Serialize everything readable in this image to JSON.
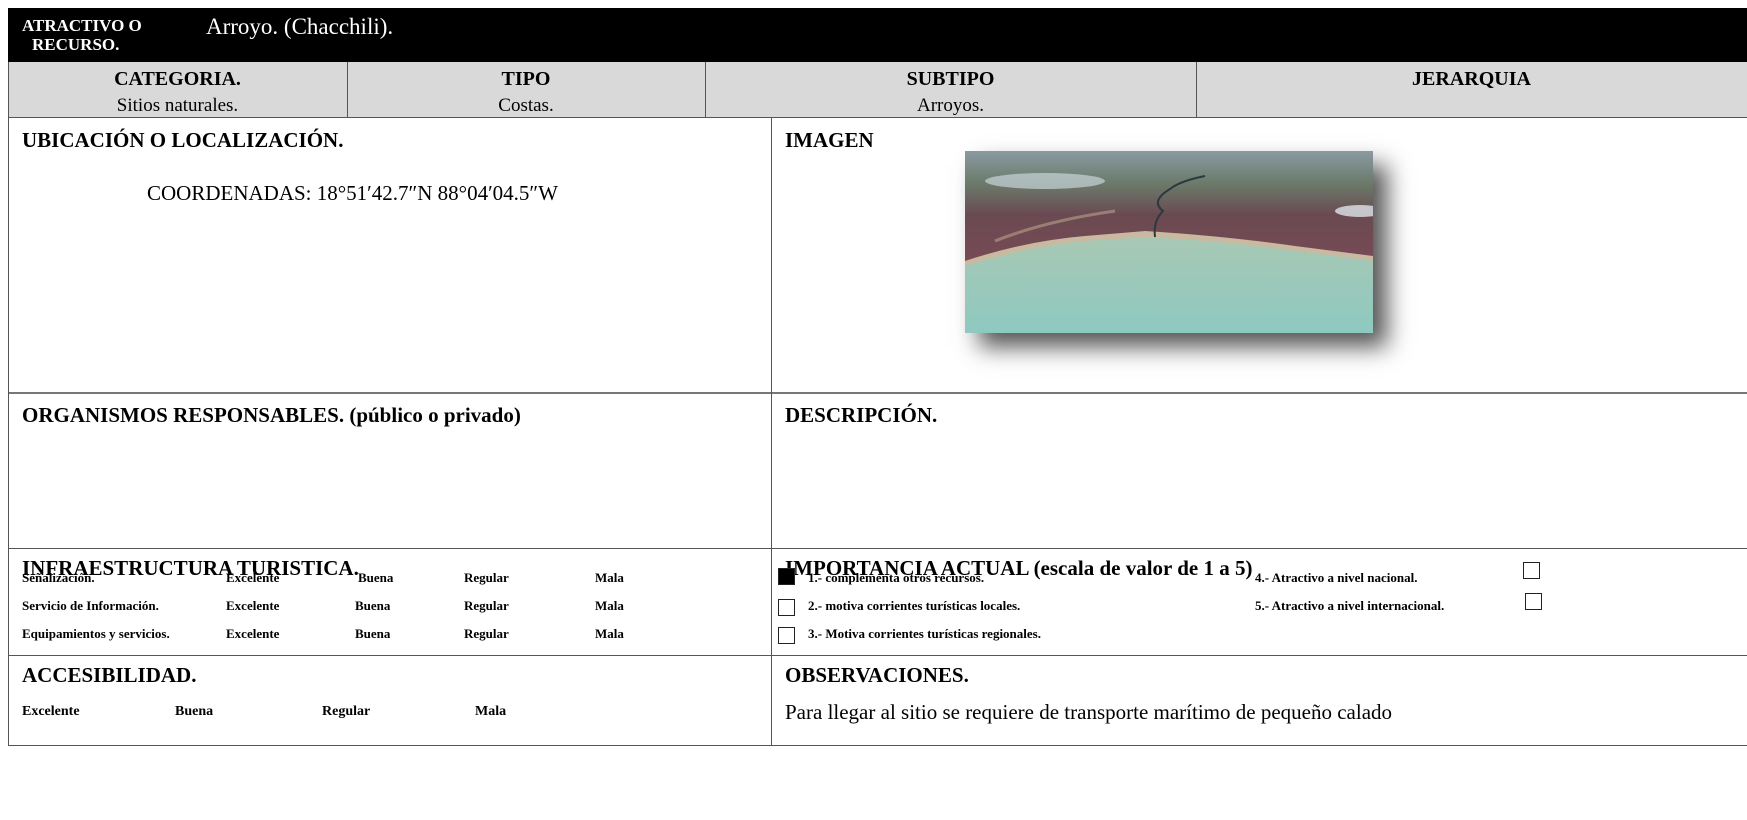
{
  "header": {
    "label_line1": "ATRACTIVO O",
    "label_line2": "RECURSO.",
    "title": "Arroyo. (Chacchili)."
  },
  "classification": {
    "columns": [
      {
        "heading": "CATEGORIA.",
        "value": "Sitios naturales."
      },
      {
        "heading": "TIPO",
        "value": "Costas."
      },
      {
        "heading": "SUBTIPO",
        "value": "Arroyos."
      },
      {
        "heading": "JERARQUIA"
      }
    ]
  },
  "location": {
    "heading": "UBICACIÓN O LOCALIZACIÓN.",
    "coordinates": "COORDENADAS: 18°51′42.7″N 88°04′04.5″W"
  },
  "image": {
    "heading": "IMAGEN"
  },
  "organisms": {
    "heading": "ORGANISMOS RESPONSABLES. (público o privado)"
  },
  "description": {
    "heading": "DESCRIPCIÓN."
  },
  "infrastructure": {
    "heading": "INFRAESTRUCTURA TURISTICA.",
    "rows": [
      {
        "label": "Señalización.",
        "options": [
          "Excelente",
          "Buena",
          "Regular",
          "Mala"
        ]
      },
      {
        "label": "Servicio de Información.",
        "options": [
          "Excelente",
          "Buena",
          "Regular",
          "Mala"
        ]
      },
      {
        "label": "Equipamientos y servicios.",
        "options": [
          "Excelente",
          "Buena",
          "Regular",
          "Mala"
        ]
      }
    ]
  },
  "importance": {
    "heading": "IMPORTANCIA ACTUAL (escala de valor de 1 a 5)",
    "items": [
      {
        "text": "1.- complementa otros recursos.",
        "checked": true
      },
      {
        "text": "2.- motiva corrientes turísticas locales.",
        "checked": false
      },
      {
        "text": "3.- Motiva corrientes turísticas regionales.",
        "checked": false
      },
      {
        "text": "4.- Atractivo a nivel nacional.",
        "checked": false
      },
      {
        "text": "5.- Atractivo a nivel internacional.",
        "checked": false
      }
    ]
  },
  "accessibility": {
    "heading": "ACCESIBILIDAD.",
    "options": [
      "Excelente",
      "Buena",
      "Regular",
      "Mala"
    ]
  },
  "observations": {
    "heading": "OBSERVACIONES.",
    "text": "Para llegar al sitio se requiere de transporte marítimo de pequeño calado"
  }
}
